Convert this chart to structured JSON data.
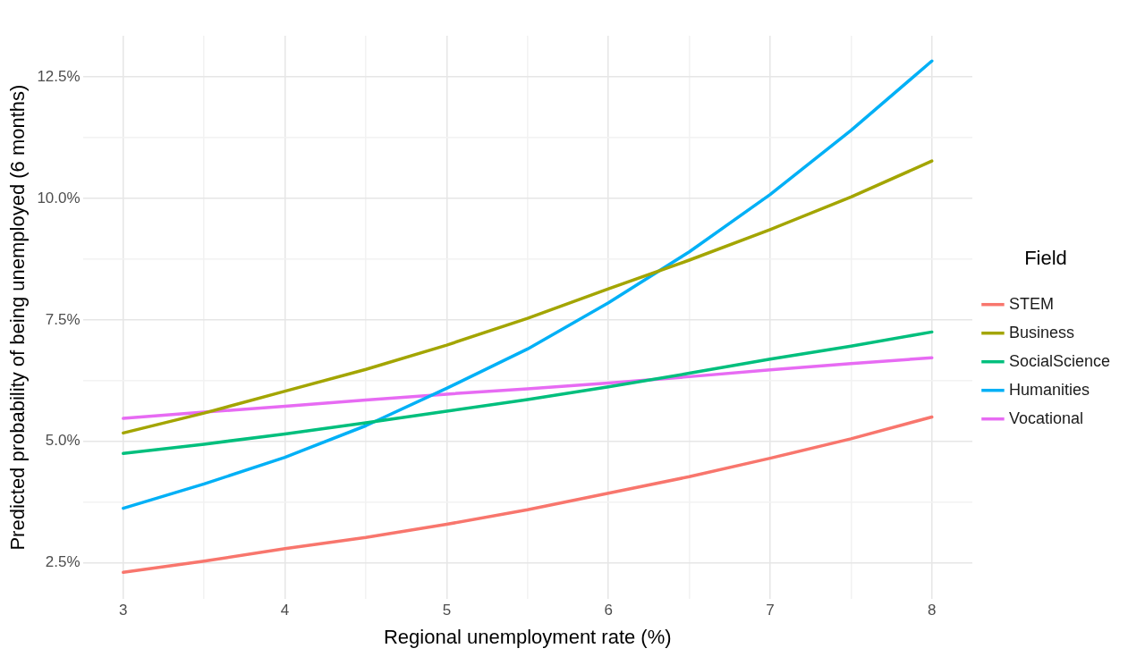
{
  "chart_data": {
    "type": "line",
    "xlabel": "Regional unemployment rate (%)",
    "ylabel": "Predicted probability of being unemployed (6 months)",
    "legend_title": "Field",
    "legend": "right",
    "grid": true,
    "marker": "none",
    "line_style": "solid",
    "x": [
      3,
      3.5,
      4,
      4.5,
      5,
      5.5,
      6,
      6.5,
      7,
      7.5,
      8
    ],
    "xlim": [
      2.75,
      8.25
    ],
    "xticks": [
      3,
      {
        "value": 3.5,
        "label": null
      },
      4,
      {
        "value": 4.5,
        "label": null
      },
      5,
      {
        "value": 5.5,
        "label": null
      },
      6,
      {
        "value": 6.5,
        "label": null
      },
      7,
      {
        "value": 7.5,
        "label": null
      },
      8
    ],
    "ylim": [
      1.75,
      13.35
    ],
    "yticks": [
      {
        "value": 2.5,
        "label": "2.5%"
      },
      {
        "value": 3.75,
        "label": null
      },
      {
        "value": 5,
        "label": "5.0%"
      },
      {
        "value": 6.25,
        "label": null
      },
      {
        "value": 7.5,
        "label": "7.5%"
      },
      {
        "value": 8.75,
        "label": null
      },
      {
        "value": 10,
        "label": "10.0%"
      },
      {
        "value": 11.25,
        "label": null
      },
      {
        "value": 12.5,
        "label": "12.5%"
      }
    ],
    "series": [
      {
        "name": "STEM",
        "color": "#f8766d",
        "values": [
          2.3,
          2.53,
          2.79,
          3.02,
          3.29,
          3.59,
          3.93,
          4.27,
          4.65,
          5.05,
          5.5
        ]
      },
      {
        "name": "Business",
        "color": "#a3a500",
        "values": [
          5.17,
          5.58,
          6.03,
          6.48,
          6.98,
          7.53,
          8.14,
          8.73,
          9.36,
          10.03,
          10.77
        ]
      },
      {
        "name": "SocialScience",
        "color": "#00bf7d",
        "values": [
          4.75,
          4.94,
          5.15,
          5.38,
          5.62,
          5.86,
          6.12,
          6.4,
          6.69,
          6.96,
          7.25
        ]
      },
      {
        "name": "Humanities",
        "color": "#00b0f6",
        "values": [
          3.62,
          4.12,
          4.67,
          5.32,
          6.09,
          6.9,
          7.85,
          8.9,
          10.08,
          11.4,
          12.83
        ]
      },
      {
        "name": "Vocational",
        "color": "#e76bf3",
        "values": [
          5.47,
          5.6,
          5.72,
          5.85,
          5.97,
          6.08,
          6.2,
          6.33,
          6.47,
          6.6,
          6.72
        ]
      }
    ]
  }
}
